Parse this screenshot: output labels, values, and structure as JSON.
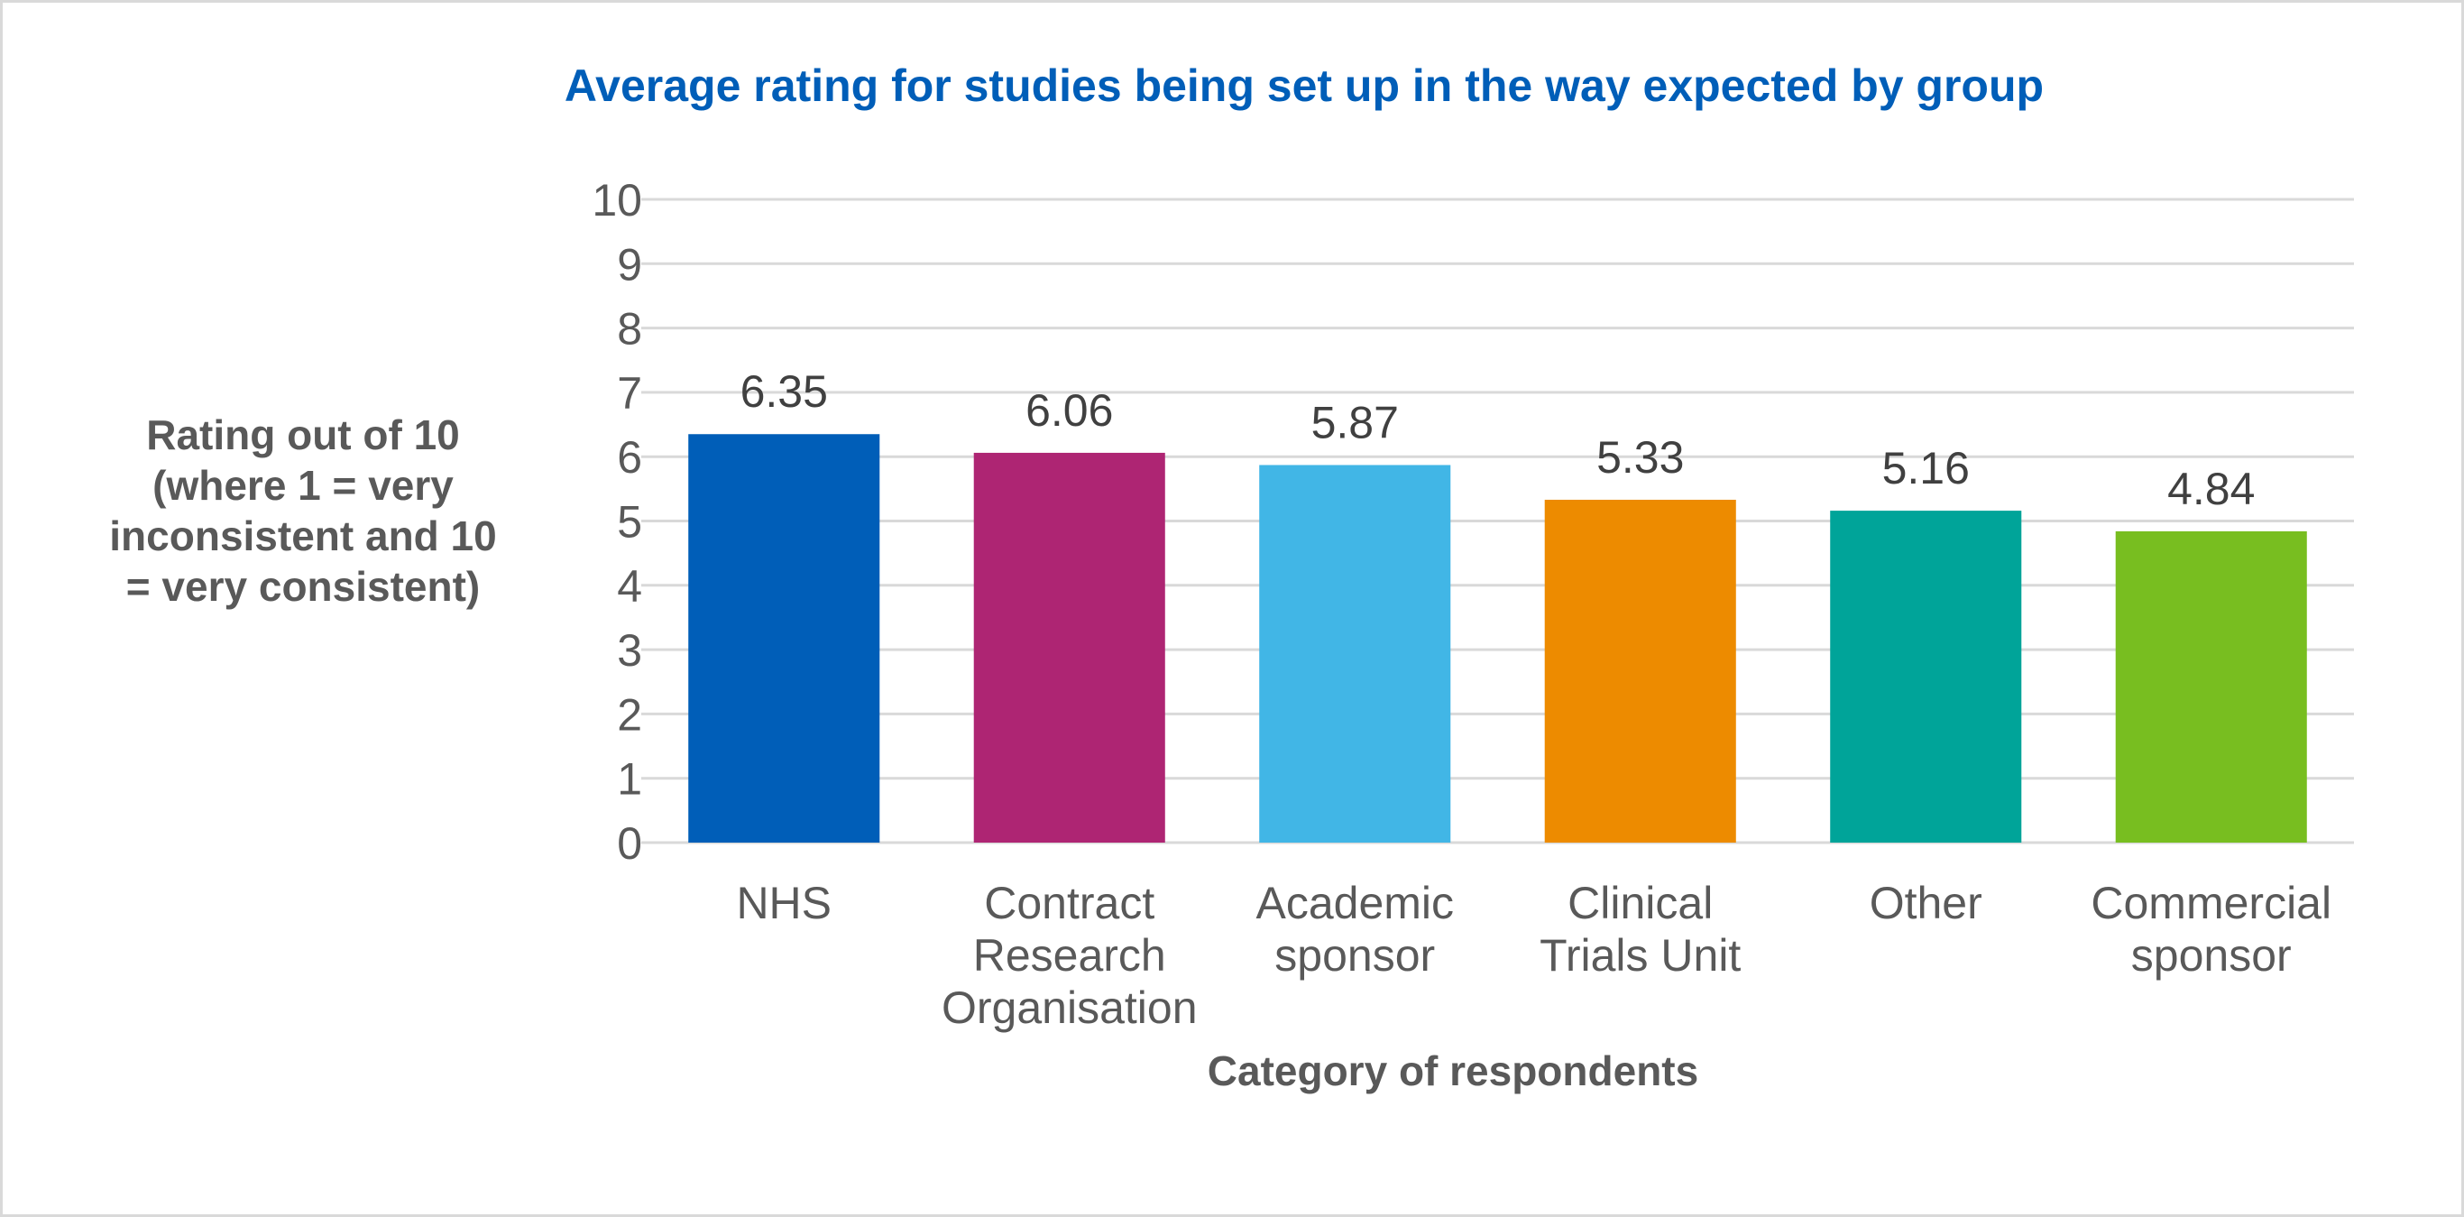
{
  "chart_data": {
    "type": "bar",
    "title": "Average rating for studies being set up in the way expected by group",
    "xlabel": "Category of respondents",
    "ylabel_lines": [
      "Rating out of 10",
      "(where 1 = very",
      "inconsistent and 10",
      "= very consistent)"
    ],
    "categories": [
      [
        "NHS"
      ],
      [
        "Contract",
        "Research",
        "Organisation"
      ],
      [
        "Academic",
        "sponsor"
      ],
      [
        "Clinical",
        "Trials Unit"
      ],
      [
        "Other"
      ],
      [
        "Commercial",
        "sponsor"
      ]
    ],
    "values": [
      6.35,
      6.06,
      5.87,
      5.33,
      5.16,
      4.84
    ],
    "data_labels": [
      "6.35",
      "6.06",
      "5.87",
      "5.33",
      "5.16",
      "4.84"
    ],
    "colors": [
      "#005eb8",
      "#ae2573",
      "#41b6e6",
      "#ed8b00",
      "#00a499",
      "#78be20"
    ],
    "ylim": [
      0,
      10
    ],
    "yticks": [
      "0",
      "1",
      "2",
      "3",
      "4",
      "5",
      "6",
      "7",
      "8",
      "9",
      "10"
    ],
    "grid": true,
    "legend": "none",
    "title_color": "#005eb8"
  }
}
